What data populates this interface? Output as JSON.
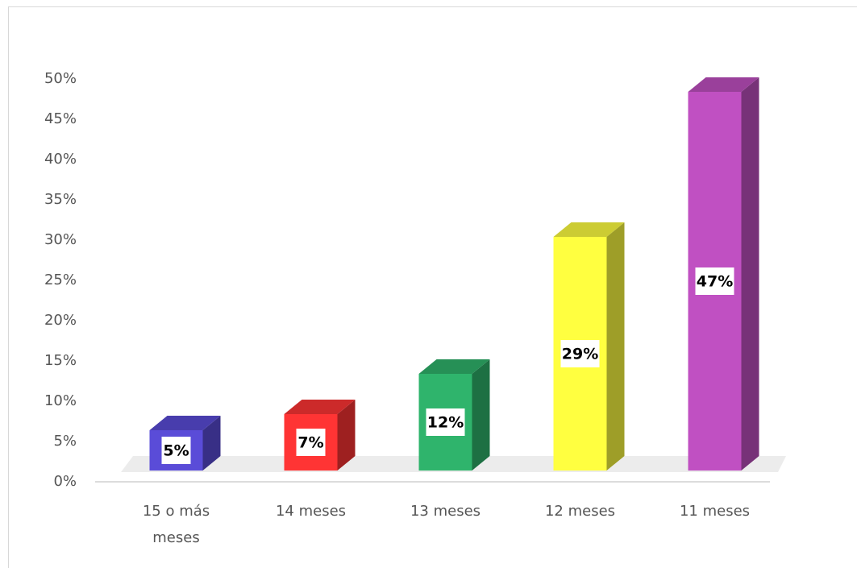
{
  "chart_data": {
    "type": "bar3d",
    "categories": [
      "15 o más meses",
      "14 meses",
      "13 meses",
      "12 meses",
      "11 meses"
    ],
    "values": [
      5,
      7,
      12,
      29,
      47
    ],
    "value_labels": [
      "5%",
      "7%",
      "12%",
      "29%",
      "47%"
    ],
    "colors": [
      "#5a4cd8",
      "#ff3434",
      "#2fb46c",
      "#ffff40",
      "#c050c2"
    ],
    "ylim": [
      0,
      50
    ],
    "yticks": [
      {
        "value": 0,
        "label": "0%"
      },
      {
        "value": 5,
        "label": "5%"
      },
      {
        "value": 10,
        "label": "10%"
      },
      {
        "value": 15,
        "label": "15%"
      },
      {
        "value": 20,
        "label": "20%"
      },
      {
        "value": 25,
        "label": "25%"
      },
      {
        "value": 30,
        "label": "30%"
      },
      {
        "value": 35,
        "label": "35%"
      },
      {
        "value": 40,
        "label": "40%"
      },
      {
        "value": 45,
        "label": "45%"
      },
      {
        "value": 50,
        "label": "50%"
      }
    ]
  }
}
